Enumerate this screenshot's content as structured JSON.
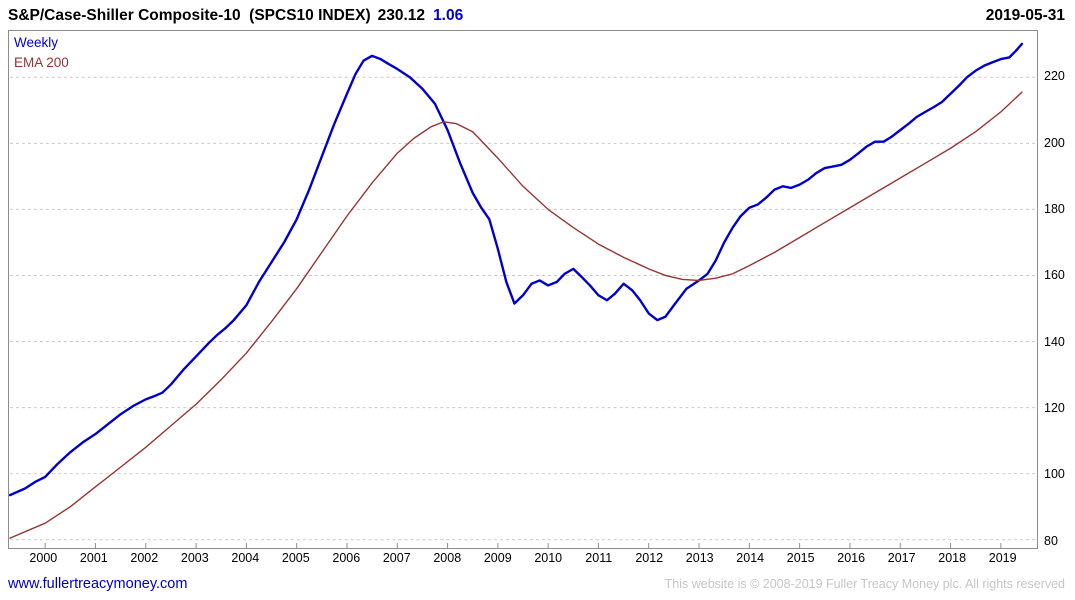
{
  "header": {
    "title": "S&P/Case-Shiller Composite-10  (SPCS10 INDEX)",
    "last_value": "230.12",
    "change": "1.06",
    "date": "2019-05-31"
  },
  "footer": {
    "site_link": "www.fullertreacymoney.com",
    "copyright": "This website is © 2008-2019 Fuller Treacy Money plc. All rights reserved"
  },
  "chart_data": {
    "type": "line",
    "title": "S&P/Case-Shiller Composite-10 (SPCS10 INDEX)",
    "timeframe": "Weekly",
    "last_value": 230.12,
    "change": 1.06,
    "date": "2019-05-31",
    "grid": "horizontal-dashed",
    "legend_position": "top-left",
    "x_ticks": [
      2000,
      2001,
      2002,
      2003,
      2004,
      2005,
      2006,
      2007,
      2008,
      2009,
      2010,
      2011,
      2012,
      2013,
      2014,
      2015,
      2016,
      2017,
      2018,
      2019
    ],
    "y_ticks": [
      80,
      100,
      120,
      140,
      160,
      180,
      200,
      220
    ],
    "xlim": [
      1999.3,
      2019.7
    ],
    "ylim": [
      77.5,
      234
    ],
    "series": [
      {
        "name": "Weekly",
        "color": "#0000cc",
        "width": 2.4,
        "x": [
          1999.3,
          1999.6,
          1999.8,
          2000,
          2000.25,
          2000.5,
          2000.75,
          2001,
          2001.25,
          2001.5,
          2001.75,
          2002,
          2002.17,
          2002.33,
          2002.5,
          2002.75,
          2003,
          2003.25,
          2003.42,
          2003.58,
          2003.75,
          2004,
          2004.25,
          2004.5,
          2004.75,
          2005,
          2005.25,
          2005.5,
          2005.75,
          2006,
          2006.17,
          2006.33,
          2006.5,
          2006.67,
          2006.83,
          2007,
          2007.25,
          2007.5,
          2007.75,
          2008,
          2008.25,
          2008.5,
          2008.67,
          2008.83,
          2009,
          2009.17,
          2009.33,
          2009.5,
          2009.67,
          2009.83,
          2010,
          2010.17,
          2010.33,
          2010.5,
          2010.67,
          2010.83,
          2011,
          2011.17,
          2011.33,
          2011.5,
          2011.67,
          2011.83,
          2012,
          2012.17,
          2012.33,
          2012.5,
          2012.75,
          2013,
          2013.17,
          2013.33,
          2013.5,
          2013.67,
          2013.83,
          2014,
          2014.17,
          2014.33,
          2014.5,
          2014.67,
          2014.83,
          2015,
          2015.17,
          2015.33,
          2015.5,
          2015.67,
          2015.83,
          2016,
          2016.17,
          2016.33,
          2016.5,
          2016.67,
          2016.83,
          2017,
          2017.17,
          2017.33,
          2017.5,
          2017.67,
          2017.83,
          2018,
          2018.17,
          2018.33,
          2018.5,
          2018.67,
          2018.83,
          2019,
          2019.17,
          2019.3,
          2019.42
        ],
        "y": [
          93.5,
          95.5,
          97.5,
          99,
          103,
          106.5,
          109.5,
          112,
          115,
          118,
          120.5,
          122.5,
          123.5,
          124.5,
          127,
          131.5,
          135.5,
          139.5,
          142,
          144,
          146.5,
          151,
          158,
          164,
          170,
          177,
          186,
          196,
          206,
          215,
          221,
          225,
          226.5,
          225.5,
          224,
          222.5,
          220,
          216.5,
          212,
          204,
          194,
          185,
          180.5,
          177,
          168,
          158,
          151.5,
          154,
          157.5,
          158.5,
          157,
          158,
          160.5,
          162,
          159.5,
          157,
          154,
          152.5,
          154.5,
          157.5,
          155.5,
          152.5,
          148.5,
          146.5,
          147.5,
          151,
          156,
          158.5,
          160.5,
          164.5,
          170,
          174.5,
          178,
          180.5,
          181.5,
          183.5,
          186,
          187,
          186.5,
          187.5,
          189,
          191,
          192.5,
          193,
          193.5,
          195,
          197,
          199,
          200.5,
          200.5,
          202,
          204,
          206,
          208,
          209.5,
          211,
          212.5,
          215,
          217.5,
          220,
          222,
          223.5,
          224.5,
          225.5,
          226,
          228,
          230.1
        ]
      },
      {
        "name": "EMA 200",
        "color": "#993333",
        "width": 1.4,
        "x": [
          1999.3,
          2000,
          2000.5,
          2001,
          2001.5,
          2002,
          2002.5,
          2003,
          2003.5,
          2004,
          2004.5,
          2005,
          2005.5,
          2006,
          2006.5,
          2007,
          2007.33,
          2007.67,
          2007.92,
          2008.17,
          2008.5,
          2009,
          2009.5,
          2010,
          2010.5,
          2011,
          2011.5,
          2012,
          2012.33,
          2012.67,
          2013,
          2013.33,
          2013.67,
          2014,
          2014.5,
          2015,
          2015.5,
          2016,
          2016.5,
          2017,
          2017.5,
          2018,
          2018.5,
          2019,
          2019.42
        ],
        "y": [
          80.5,
          85,
          90,
          96,
          102,
          108,
          114.5,
          121,
          128.5,
          136.5,
          146,
          156,
          167,
          178,
          188,
          197,
          201.5,
          205,
          206.5,
          206,
          203.5,
          195.5,
          187,
          180,
          174.5,
          169.5,
          165.5,
          162,
          160,
          158.8,
          158.5,
          159.2,
          160.5,
          163,
          167,
          171.5,
          176,
          180.5,
          185,
          189.5,
          194,
          198.5,
          203.5,
          209.5,
          215.5
        ]
      }
    ]
  }
}
